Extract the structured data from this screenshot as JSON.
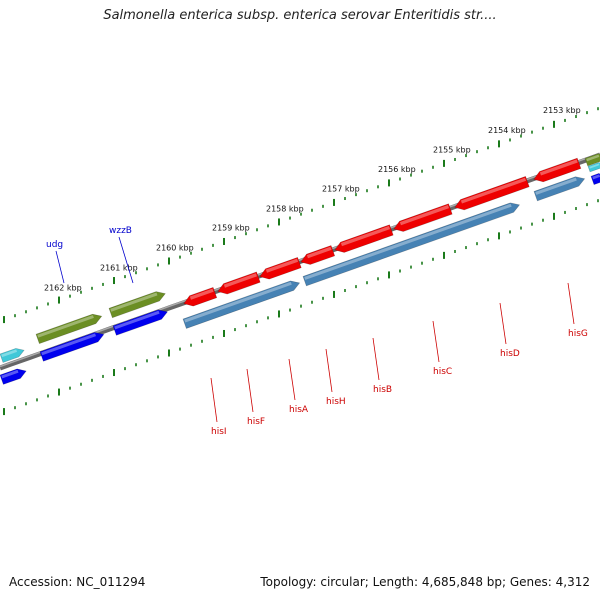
{
  "title": "Salmonella enterica subsp. enterica serovar Enteritidis str....",
  "footer": {
    "accession": "Accession: NC_011294",
    "summary": "Topology: circular; Length: 4,685,848 bp; Genes: 4,312"
  },
  "scale": {
    "upper_labels": [
      "2153 kbp",
      "2154 kbp",
      "2155 kbp",
      "2156 kbp",
      "2157 kbp",
      "2158 kbp",
      "2159 kbp",
      "2160 kbp",
      "2161 kbp",
      "2162 kbp"
    ]
  },
  "genes": {
    "red_labels": [
      "hisI",
      "hisF",
      "hisA",
      "hisH",
      "hisB",
      "hisC",
      "hisD",
      "hisG"
    ],
    "blue_labels": [
      "udg",
      "wzzB"
    ]
  },
  "colors": {
    "cds": "#ff0000",
    "cds_dark": "#cc0000",
    "operon": "#4682b4",
    "blue_gene": "#0000ee",
    "olive": "#6b8e23",
    "cyan": "#40c8d8",
    "backbone": "#888888",
    "ticks": "#1a7a1a",
    "red_label": "#cc0000",
    "blue_label": "#0000cc"
  }
}
